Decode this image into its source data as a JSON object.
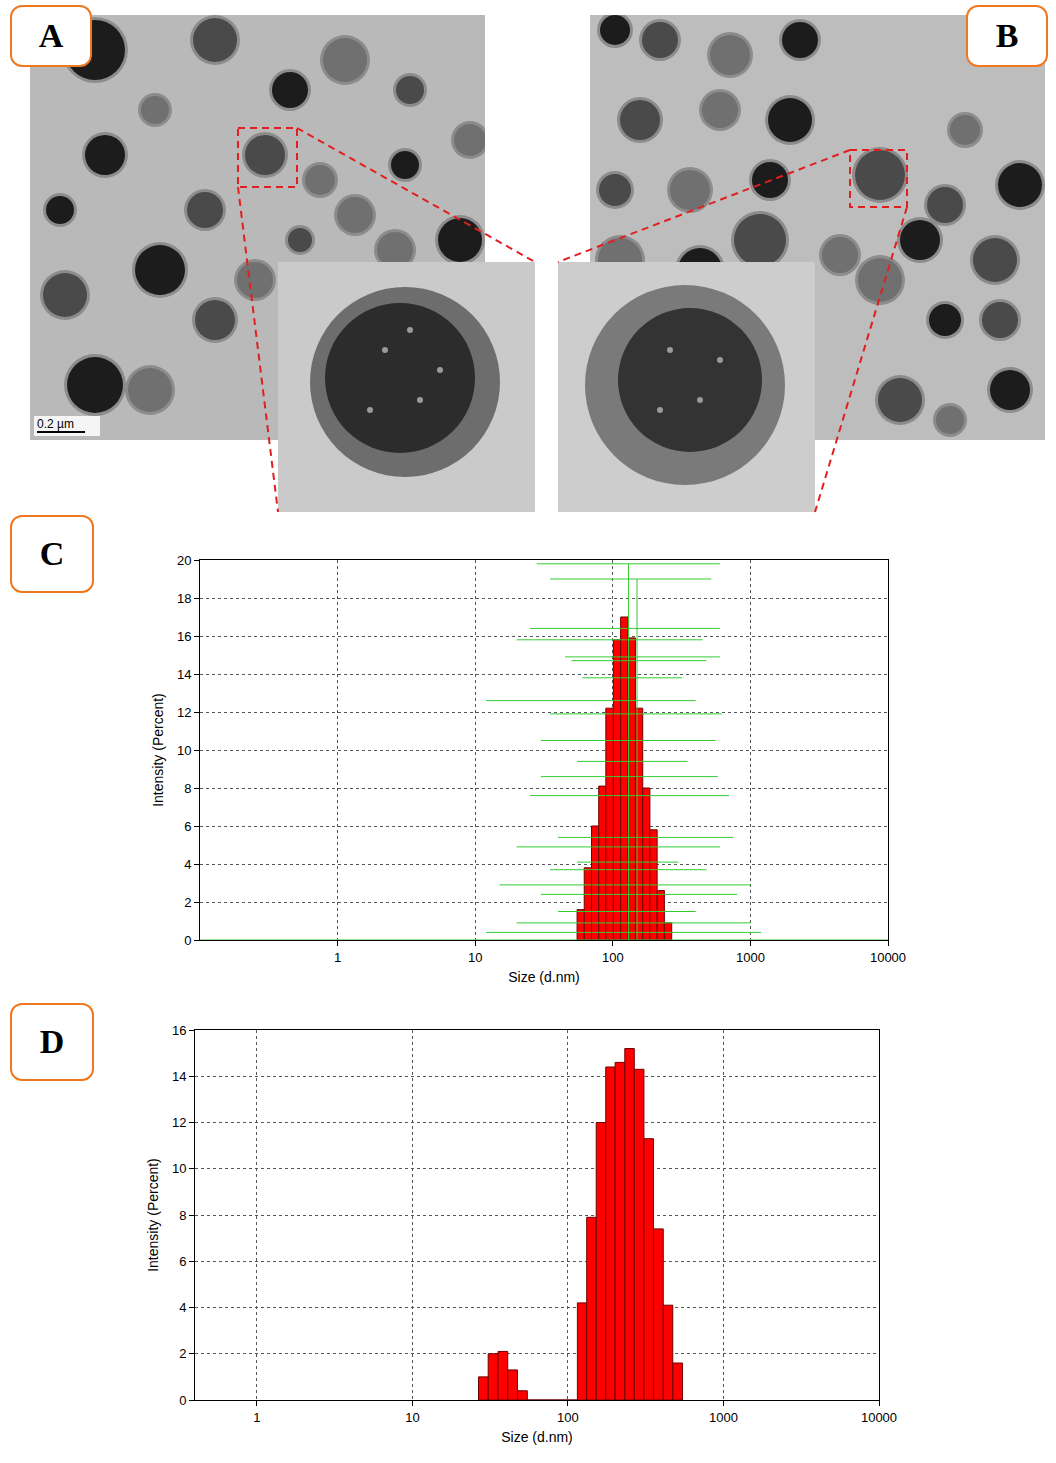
{
  "images": [
    {
      "panel": "A",
      "scale_bar": "0.2 µm"
    },
    {
      "panel": "B"
    }
  ],
  "chart_data": [
    {
      "panel": "C",
      "type": "histogram",
      "x_label": "Size (d.nm)",
      "y_label": "Intensity (Percent)",
      "bins": [
        55,
        62,
        70,
        79,
        89,
        101,
        114,
        129,
        146,
        165,
        186,
        210,
        237,
        268
      ],
      "values": [
        1.6,
        3.8,
        6.0,
        8.1,
        12.2,
        15.8,
        17.0,
        15.9,
        12.2,
        8.0,
        5.8,
        2.6,
        0.9
      ],
      "color": "#ff0000",
      "log": "x",
      "grid": true,
      "xlim": [
        0.1,
        10000
      ],
      "xticks": [
        1,
        10,
        100,
        1000,
        10000
      ],
      "ylim": [
        0,
        20
      ],
      "yticks": [
        0,
        2,
        4,
        6,
        8,
        10,
        12,
        14,
        16,
        18,
        20
      ],
      "error_bars": {
        "color": "#33cc33",
        "segments": [
          {
            "x": [
              28,
              600
            ],
            "y": [
              19.8,
              19.8
            ]
          },
          {
            "x": [
              35,
              520
            ],
            "y": [
              19.0,
              19.0
            ]
          },
          {
            "x": [
              25,
              600
            ],
            "y": [
              16.4,
              16.4
            ]
          },
          {
            "x": [
              20,
              450
            ],
            "y": [
              15.8,
              15.8
            ]
          },
          {
            "x": [
              45,
              600
            ],
            "y": [
              14.9,
              14.9
            ]
          },
          {
            "x": [
              50,
              480
            ],
            "y": [
              14.7,
              14.7
            ]
          },
          {
            "x": [
              60,
              320
            ],
            "y": [
              13.8,
              13.8
            ]
          },
          {
            "x": [
              12,
              400
            ],
            "y": [
              12.6,
              12.6
            ]
          },
          {
            "x": [
              35,
              620
            ],
            "y": [
              11.9,
              11.9
            ]
          },
          {
            "x": [
              30,
              560
            ],
            "y": [
              10.5,
              10.5
            ]
          },
          {
            "x": [
              55,
              350
            ],
            "y": [
              9.4,
              9.4
            ]
          },
          {
            "x": [
              30,
              580
            ],
            "y": [
              8.6,
              8.6
            ]
          },
          {
            "x": [
              25,
              700
            ],
            "y": [
              7.6,
              7.6
            ]
          },
          {
            "x": [
              40,
              750
            ],
            "y": [
              5.4,
              5.4
            ]
          },
          {
            "x": [
              20,
              600
            ],
            "y": [
              4.9,
              4.9
            ]
          },
          {
            "x": [
              55,
              300
            ],
            "y": [
              4.1,
              4.1
            ]
          },
          {
            "x": [
              35,
              480
            ],
            "y": [
              3.7,
              3.7
            ]
          },
          {
            "x": [
              15,
              1000
            ],
            "y": [
              2.9,
              2.9
            ]
          },
          {
            "x": [
              30,
              800
            ],
            "y": [
              2.4,
              2.4
            ]
          },
          {
            "x": [
              40,
              400
            ],
            "y": [
              1.5,
              1.5
            ]
          },
          {
            "x": [
              20,
              1000
            ],
            "y": [
              0.9,
              0.9
            ]
          },
          {
            "x": [
              12,
              1200
            ],
            "y": [
              0.4,
              0.4
            ]
          },
          {
            "x": [
              130,
              130
            ],
            "y": [
              0,
              19.8
            ]
          },
          {
            "x": [
              150,
              150
            ],
            "y": [
              0,
              19.0
            ]
          },
          {
            "x": [
              0.1,
              10000
            ],
            "y": [
              0,
              0
            ]
          }
        ]
      }
    },
    {
      "panel": "D",
      "type": "histogram",
      "x_label": "Size (d.nm)",
      "y_label": "Intensity (Percent)",
      "bins": [
        26.6,
        30.7,
        35.5,
        41.0,
        47.4,
        54.8,
        115,
        132,
        152,
        175,
        201,
        232,
        267,
        308,
        355,
        410,
        472,
        545
      ],
      "values": [
        1.0,
        2.0,
        2.1,
        1.3,
        0.4,
        0,
        4.2,
        7.9,
        12.0,
        14.4,
        14.6,
        15.2,
        14.3,
        11.3,
        7.4,
        4.1,
        1.6
      ],
      "color": "#ff0000",
      "log": "x",
      "grid": true,
      "xlim": [
        0.4,
        10000
      ],
      "xticks": [
        1,
        10,
        100,
        1000,
        10000
      ],
      "ylim": [
        0,
        16
      ],
      "yticks": [
        0,
        2,
        4,
        6,
        8,
        10,
        12,
        14,
        16
      ]
    }
  ]
}
